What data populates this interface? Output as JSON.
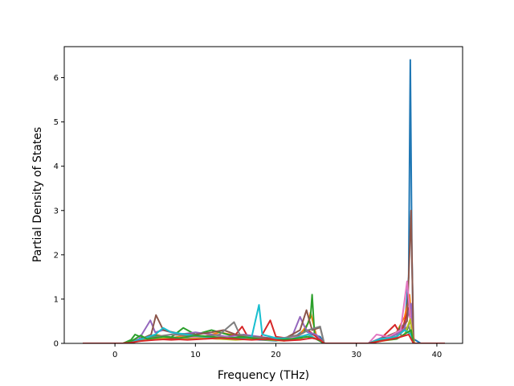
{
  "chart_data": {
    "type": "line",
    "title": "",
    "xlabel": "Frequency (THz)",
    "ylabel": "Partial Density of States",
    "xlim": [
      -6.3,
      43.2
    ],
    "ylim": [
      0,
      6.7
    ],
    "xticks": [
      0,
      10,
      20,
      30,
      40
    ],
    "yticks": [
      0,
      1,
      2,
      3,
      4,
      5,
      6
    ],
    "grid": false,
    "legend": "none",
    "series": [
      {
        "color": "#1f77b4",
        "points": [
          [
            -4,
            0
          ],
          [
            1,
            0
          ],
          [
            2,
            0.05
          ],
          [
            4,
            0.12
          ],
          [
            6,
            0.1
          ],
          [
            8,
            0.15
          ],
          [
            10,
            0.1
          ],
          [
            12,
            0.14
          ],
          [
            14,
            0.1
          ],
          [
            16,
            0.12
          ],
          [
            18,
            0.08
          ],
          [
            20,
            0.06
          ],
          [
            22,
            0.1
          ],
          [
            23.5,
            0.3
          ],
          [
            24.5,
            0.2
          ],
          [
            25.5,
            0.15
          ],
          [
            26,
            0
          ],
          [
            31.5,
            0
          ],
          [
            33,
            0.08
          ],
          [
            34,
            0.15
          ],
          [
            35,
            0.2
          ],
          [
            36,
            0.4
          ],
          [
            36.5,
            1.5
          ],
          [
            36.7,
            6.4
          ],
          [
            36.9,
            2.0
          ],
          [
            37.1,
            0.1
          ],
          [
            38,
            0
          ],
          [
            41,
            0
          ]
        ]
      },
      {
        "color": "#ff7f0e",
        "points": [
          [
            -4,
            0
          ],
          [
            1,
            0
          ],
          [
            2,
            0.04
          ],
          [
            4,
            0.1
          ],
          [
            5,
            0.2
          ],
          [
            7,
            0.12
          ],
          [
            9,
            0.18
          ],
          [
            11,
            0.15
          ],
          [
            13,
            0.25
          ],
          [
            15,
            0.18
          ],
          [
            17,
            0.1
          ],
          [
            19,
            0.12
          ],
          [
            21,
            0.08
          ],
          [
            23,
            0.2
          ],
          [
            24,
            0.45
          ],
          [
            24.3,
            0.7
          ],
          [
            25,
            0.2
          ],
          [
            26,
            0
          ],
          [
            31.5,
            0
          ],
          [
            33,
            0.1
          ],
          [
            35,
            0.25
          ],
          [
            36,
            0.6
          ],
          [
            36.6,
            1.1
          ],
          [
            36.9,
            0.5
          ],
          [
            37.2,
            0
          ],
          [
            41,
            0
          ]
        ]
      },
      {
        "color": "#2ca02c",
        "points": [
          [
            -4,
            0
          ],
          [
            1,
            0
          ],
          [
            2,
            0.08
          ],
          [
            2.5,
            0.2
          ],
          [
            3.5,
            0.12
          ],
          [
            5,
            0.18
          ],
          [
            7,
            0.14
          ],
          [
            8.5,
            0.35
          ],
          [
            10,
            0.2
          ],
          [
            12,
            0.3
          ],
          [
            14,
            0.2
          ],
          [
            16,
            0.15
          ],
          [
            18,
            0.1
          ],
          [
            20,
            0.12
          ],
          [
            22,
            0.1
          ],
          [
            23.5,
            0.25
          ],
          [
            24.3,
            0.6
          ],
          [
            24.5,
            1.1
          ],
          [
            24.8,
            0.2
          ],
          [
            26,
            0
          ],
          [
            31.5,
            0
          ],
          [
            33,
            0.1
          ],
          [
            35,
            0.2
          ],
          [
            35.5,
            0.4
          ],
          [
            36.3,
            0.3
          ],
          [
            36.8,
            0.6
          ],
          [
            37.1,
            0
          ],
          [
            41,
            0
          ]
        ]
      },
      {
        "color": "#d62728",
        "points": [
          [
            -4,
            0
          ],
          [
            1,
            0
          ],
          [
            3,
            0.06
          ],
          [
            5,
            0.1
          ],
          [
            7,
            0.08
          ],
          [
            9,
            0.1
          ],
          [
            11,
            0.12
          ],
          [
            13,
            0.1
          ],
          [
            15,
            0.2
          ],
          [
            15.8,
            0.38
          ],
          [
            16.5,
            0.15
          ],
          [
            18,
            0.1
          ],
          [
            19.3,
            0.52
          ],
          [
            20,
            0.15
          ],
          [
            22,
            0.1
          ],
          [
            23,
            0.2
          ],
          [
            24,
            0.3
          ],
          [
            25,
            0.15
          ],
          [
            26,
            0
          ],
          [
            31.5,
            0
          ],
          [
            33,
            0.1
          ],
          [
            34.8,
            0.42
          ],
          [
            35.5,
            0.2
          ],
          [
            36.5,
            0.8
          ],
          [
            36.9,
            0.3
          ],
          [
            37.1,
            0
          ],
          [
            41,
            0
          ]
        ]
      },
      {
        "color": "#9467bd",
        "points": [
          [
            -4,
            0
          ],
          [
            1.5,
            0
          ],
          [
            3,
            0.1
          ],
          [
            4.4,
            0.52
          ],
          [
            5,
            0.25
          ],
          [
            6,
            0.3
          ],
          [
            8,
            0.2
          ],
          [
            10,
            0.25
          ],
          [
            12,
            0.2
          ],
          [
            14,
            0.15
          ],
          [
            16,
            0.2
          ],
          [
            18,
            0.15
          ],
          [
            20,
            0.1
          ],
          [
            22,
            0.15
          ],
          [
            23,
            0.6
          ],
          [
            23.5,
            0.4
          ],
          [
            24,
            0.25
          ],
          [
            25,
            0.2
          ],
          [
            26,
            0
          ],
          [
            31.5,
            0
          ],
          [
            33,
            0.12
          ],
          [
            35,
            0.2
          ],
          [
            36,
            0.35
          ],
          [
            36.8,
            0.9
          ],
          [
            37.1,
            0
          ],
          [
            41,
            0
          ]
        ]
      },
      {
        "color": "#8c564b",
        "points": [
          [
            -4,
            0
          ],
          [
            1.5,
            0
          ],
          [
            3,
            0.08
          ],
          [
            4.5,
            0.2
          ],
          [
            5.1,
            0.64
          ],
          [
            6,
            0.3
          ],
          [
            8,
            0.22
          ],
          [
            10,
            0.2
          ],
          [
            12,
            0.25
          ],
          [
            13.5,
            0.3
          ],
          [
            15,
            0.2
          ],
          [
            17,
            0.15
          ],
          [
            19,
            0.12
          ],
          [
            21,
            0.1
          ],
          [
            23,
            0.3
          ],
          [
            23.8,
            0.75
          ],
          [
            24.5,
            0.3
          ],
          [
            25.5,
            0.36
          ],
          [
            26,
            0
          ],
          [
            31.5,
            0
          ],
          [
            33,
            0.1
          ],
          [
            35,
            0.25
          ],
          [
            36.3,
            0.5
          ],
          [
            36.8,
            3.0
          ],
          [
            37.1,
            0
          ],
          [
            41,
            0
          ]
        ]
      },
      {
        "color": "#e377c2",
        "points": [
          [
            -4,
            0
          ],
          [
            1.5,
            0
          ],
          [
            3,
            0.05
          ],
          [
            5,
            0.12
          ],
          [
            7,
            0.1
          ],
          [
            9,
            0.15
          ],
          [
            11,
            0.12
          ],
          [
            13,
            0.14
          ],
          [
            15,
            0.12
          ],
          [
            17,
            0.1
          ],
          [
            19,
            0.08
          ],
          [
            21,
            0.1
          ],
          [
            23,
            0.15
          ],
          [
            24,
            0.2
          ],
          [
            25,
            0.1
          ],
          [
            26,
            0
          ],
          [
            31.5,
            0
          ],
          [
            32.5,
            0.2
          ],
          [
            34,
            0.15
          ],
          [
            35.5,
            0.3
          ],
          [
            36.3,
            1.4
          ],
          [
            36.7,
            0.6
          ],
          [
            37.1,
            0
          ],
          [
            41,
            0
          ]
        ]
      },
      {
        "color": "#7f7f7f",
        "points": [
          [
            -4,
            0
          ],
          [
            1.5,
            0
          ],
          [
            3,
            0.06
          ],
          [
            5,
            0.15
          ],
          [
            7,
            0.2
          ],
          [
            9,
            0.18
          ],
          [
            11,
            0.15
          ],
          [
            13,
            0.2
          ],
          [
            14.8,
            0.48
          ],
          [
            15.5,
            0.2
          ],
          [
            17,
            0.15
          ],
          [
            19,
            0.1
          ],
          [
            21,
            0.12
          ],
          [
            23,
            0.2
          ],
          [
            24,
            0.3
          ],
          [
            25.5,
            0.38
          ],
          [
            26,
            0
          ],
          [
            31.5,
            0
          ],
          [
            33,
            0.08
          ],
          [
            35,
            0.15
          ],
          [
            36.5,
            0.4
          ],
          [
            37.1,
            0
          ],
          [
            41,
            0
          ]
        ]
      },
      {
        "color": "#bcbd22",
        "points": [
          [
            -4,
            0
          ],
          [
            1.5,
            0
          ],
          [
            3,
            0.05
          ],
          [
            5,
            0.1
          ],
          [
            7,
            0.12
          ],
          [
            9,
            0.1
          ],
          [
            11,
            0.12
          ],
          [
            13,
            0.1
          ],
          [
            15,
            0.08
          ],
          [
            17,
            0.1
          ],
          [
            19,
            0.08
          ],
          [
            21,
            0.06
          ],
          [
            23,
            0.1
          ],
          [
            24,
            0.2
          ],
          [
            25,
            0.1
          ],
          [
            26,
            0
          ],
          [
            31.5,
            0
          ],
          [
            33,
            0.05
          ],
          [
            35,
            0.1
          ],
          [
            36,
            0.2
          ],
          [
            36.7,
            0.55
          ],
          [
            37.1,
            0
          ],
          [
            41,
            0
          ]
        ]
      },
      {
        "color": "#17becf",
        "points": [
          [
            -4,
            0
          ],
          [
            1.5,
            0
          ],
          [
            3,
            0.08
          ],
          [
            5,
            0.2
          ],
          [
            6,
            0.35
          ],
          [
            7,
            0.25
          ],
          [
            9,
            0.2
          ],
          [
            11,
            0.15
          ],
          [
            13,
            0.12
          ],
          [
            15,
            0.1
          ],
          [
            17,
            0.15
          ],
          [
            17.9,
            0.87
          ],
          [
            18.3,
            0.2
          ],
          [
            20,
            0.12
          ],
          [
            22,
            0.1
          ],
          [
            23,
            0.15
          ],
          [
            24,
            0.2
          ],
          [
            25,
            0.1
          ],
          [
            26,
            0
          ],
          [
            31.5,
            0
          ],
          [
            33,
            0.1
          ],
          [
            35,
            0.15
          ],
          [
            36,
            0.3
          ],
          [
            36.8,
            0.2
          ],
          [
            37.1,
            0
          ],
          [
            41,
            0
          ]
        ]
      },
      {
        "color": "#2ca02c",
        "points": [
          [
            -4,
            0
          ],
          [
            1.5,
            0
          ],
          [
            2.5,
            0.1
          ],
          [
            3.2,
            0.18
          ],
          [
            4,
            0.1
          ],
          [
            6,
            0.15
          ],
          [
            8,
            0.12
          ],
          [
            10,
            0.18
          ],
          [
            12,
            0.15
          ],
          [
            14,
            0.12
          ],
          [
            16,
            0.14
          ],
          [
            18,
            0.1
          ],
          [
            20,
            0.08
          ],
          [
            22,
            0.1
          ],
          [
            24,
            0.15
          ],
          [
            25,
            0.1
          ],
          [
            26,
            0
          ],
          [
            31.5,
            0
          ],
          [
            33,
            0.06
          ],
          [
            35,
            0.1
          ],
          [
            36.8,
            0.3
          ],
          [
            37.1,
            0
          ],
          [
            41,
            0
          ]
        ]
      },
      {
        "color": "#d62728",
        "points": [
          [
            -4,
            0
          ],
          [
            1.5,
            0
          ],
          [
            3,
            0.05
          ],
          [
            5,
            0.08
          ],
          [
            7,
            0.1
          ],
          [
            9,
            0.08
          ],
          [
            11,
            0.1
          ],
          [
            13,
            0.12
          ],
          [
            15,
            0.1
          ],
          [
            17,
            0.08
          ],
          [
            19,
            0.1
          ],
          [
            21,
            0.06
          ],
          [
            23,
            0.08
          ],
          [
            24.5,
            0.12
          ],
          [
            25.5,
            0.08
          ],
          [
            26,
            0
          ],
          [
            31.5,
            0
          ],
          [
            33,
            0.05
          ],
          [
            35,
            0.12
          ],
          [
            36.5,
            0.2
          ],
          [
            37.1,
            0
          ],
          [
            41,
            0
          ]
        ]
      }
    ]
  }
}
